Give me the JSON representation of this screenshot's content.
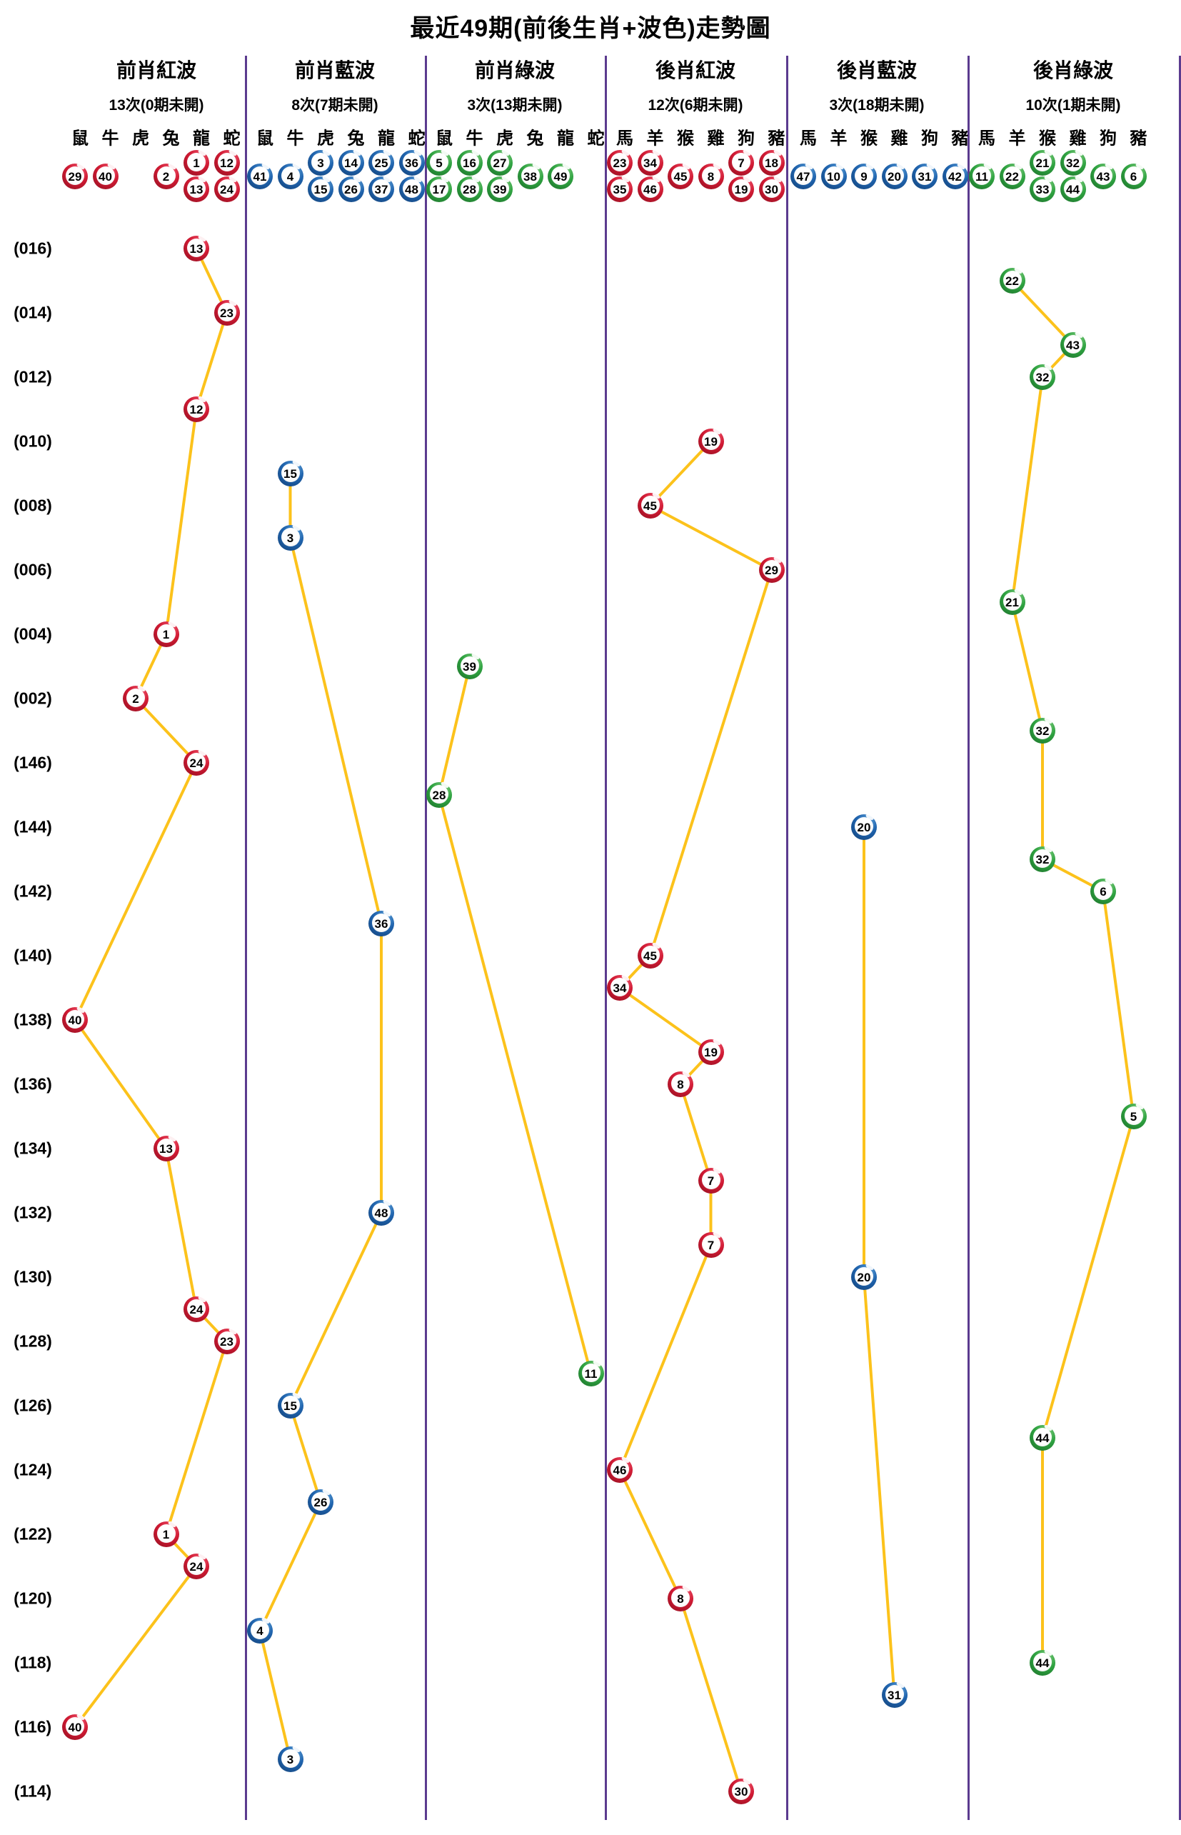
{
  "title": "最近49期(前後生肖+波色)走勢圖",
  "colors": {
    "polyline": "#fcc21b",
    "divider": "#5b3b8f",
    "red_ball": "#d01a33",
    "blue_ball": "#1f63ad",
    "green_ball": "#2fa341"
  },
  "chart_data": {
    "type": "line",
    "description": "49 lottery periods (rows, newest 016 at top wrapping 001->146 down to 114). Each row's drawn number is plotted as a ball in one of 6 wave-color sections, at the sub-column of its zodiac. Consecutive balls within a section are linked by yellow lines.",
    "row_labels": [
      {
        "row": 0,
        "label": "(016)"
      },
      {
        "row": 2,
        "label": "(014)"
      },
      {
        "row": 4,
        "label": "(012)"
      },
      {
        "row": 6,
        "label": "(010)"
      },
      {
        "row": 8,
        "label": "(008)"
      },
      {
        "row": 10,
        "label": "(006)"
      },
      {
        "row": 12,
        "label": "(004)"
      },
      {
        "row": 14,
        "label": "(002)"
      },
      {
        "row": 16,
        "label": "(146)"
      },
      {
        "row": 18,
        "label": "(144)"
      },
      {
        "row": 20,
        "label": "(142)"
      },
      {
        "row": 22,
        "label": "(140)"
      },
      {
        "row": 24,
        "label": "(138)"
      },
      {
        "row": 26,
        "label": "(136)"
      },
      {
        "row": 28,
        "label": "(134)"
      },
      {
        "row": 30,
        "label": "(132)"
      },
      {
        "row": 32,
        "label": "(130)"
      },
      {
        "row": 34,
        "label": "(128)"
      },
      {
        "row": 36,
        "label": "(126)"
      },
      {
        "row": 38,
        "label": "(124)"
      },
      {
        "row": 40,
        "label": "(122)"
      },
      {
        "row": 42,
        "label": "(120)"
      },
      {
        "row": 44,
        "label": "(118)"
      },
      {
        "row": 46,
        "label": "(116)"
      },
      {
        "row": 48,
        "label": "(114)"
      }
    ],
    "sections": [
      {
        "title": "前肖紅波",
        "count": "13次(0期未開)",
        "color": "red",
        "zodiacs": [
          "鼠",
          "牛",
          "虎",
          "兔",
          "龍",
          "蛇"
        ],
        "numbers_by_zodiac": [
          [
            29
          ],
          [
            40
          ],
          [],
          [
            2
          ],
          [
            1,
            13
          ],
          [
            12,
            24
          ]
        ]
      },
      {
        "title": "前肖藍波",
        "count": "8次(7期未開)",
        "color": "blue",
        "zodiacs": [
          "鼠",
          "牛",
          "虎",
          "兔",
          "龍",
          "蛇"
        ],
        "numbers_by_zodiac": [
          [
            41
          ],
          [
            4
          ],
          [
            3,
            15
          ],
          [
            14,
            26
          ],
          [
            25,
            37
          ],
          [
            36,
            48
          ]
        ]
      },
      {
        "title": "前肖綠波",
        "count": "3次(13期未開)",
        "color": "green",
        "zodiacs": [
          "鼠",
          "牛",
          "虎",
          "兔",
          "龍",
          "蛇"
        ],
        "numbers_by_zodiac": [
          [
            5,
            17
          ],
          [
            16,
            28
          ],
          [
            27,
            39
          ],
          [
            38
          ],
          [
            49
          ],
          []
        ]
      },
      {
        "title": "後肖紅波",
        "count": "12次(6期未開)",
        "color": "red",
        "zodiacs": [
          "馬",
          "羊",
          "猴",
          "雞",
          "狗",
          "豬"
        ],
        "numbers_by_zodiac": [
          [
            23,
            35
          ],
          [
            34,
            46
          ],
          [
            45
          ],
          [
            8
          ],
          [
            7,
            19
          ],
          [
            18,
            30
          ]
        ]
      },
      {
        "title": "後肖藍波",
        "count": "3次(18期未開)",
        "color": "blue",
        "zodiacs": [
          "馬",
          "羊",
          "猴",
          "雞",
          "狗",
          "豬"
        ],
        "numbers_by_zodiac": [
          [
            47
          ],
          [
            10
          ],
          [
            9
          ],
          [
            20
          ],
          [
            31
          ],
          [
            42
          ]
        ]
      },
      {
        "title": "後肖綠波",
        "count": "10次(1期未開)",
        "color": "green",
        "zodiacs": [
          "馬",
          "羊",
          "猴",
          "雞",
          "狗",
          "豬"
        ],
        "numbers_by_zodiac": [
          [
            11
          ],
          [
            22
          ],
          [
            21,
            33
          ],
          [
            32,
            44
          ],
          [
            43
          ],
          [
            6
          ]
        ]
      }
    ],
    "points": [
      {
        "row": 0,
        "section": 0,
        "slot": 4,
        "num": 13
      },
      {
        "row": 1,
        "section": 5,
        "slot": 1,
        "num": 22
      },
      {
        "row": 2,
        "section": 0,
        "slot": 5,
        "num": 23
      },
      {
        "row": 3,
        "section": 5,
        "slot": 3,
        "num": 43
      },
      {
        "row": 4,
        "section": 5,
        "slot": 2,
        "num": 32
      },
      {
        "row": 5,
        "section": 0,
        "slot": 4,
        "num": 12
      },
      {
        "row": 6,
        "section": 3,
        "slot": 3,
        "num": 19
      },
      {
        "row": 7,
        "section": 1,
        "slot": 1,
        "num": 15
      },
      {
        "row": 8,
        "section": 3,
        "slot": 1,
        "num": 45
      },
      {
        "row": 9,
        "section": 1,
        "slot": 1,
        "num": 3
      },
      {
        "row": 10,
        "section": 3,
        "slot": 5,
        "num": 29
      },
      {
        "row": 11,
        "section": 5,
        "slot": 1,
        "num": 21
      },
      {
        "row": 12,
        "section": 0,
        "slot": 3,
        "num": 1
      },
      {
        "row": 13,
        "section": 2,
        "slot": 1,
        "num": 39
      },
      {
        "row": 14,
        "section": 0,
        "slot": 2,
        "num": 2
      },
      {
        "row": 15,
        "section": 5,
        "slot": 2,
        "num": 32
      },
      {
        "row": 16,
        "section": 0,
        "slot": 4,
        "num": 24
      },
      {
        "row": 17,
        "section": 2,
        "slot": 0,
        "num": 28
      },
      {
        "row": 18,
        "section": 4,
        "slot": 2,
        "num": 20
      },
      {
        "row": 19,
        "section": 5,
        "slot": 2,
        "num": 32
      },
      {
        "row": 20,
        "section": 5,
        "slot": 4,
        "num": 6
      },
      {
        "row": 21,
        "section": 1,
        "slot": 4,
        "num": 36
      },
      {
        "row": 22,
        "section": 3,
        "slot": 1,
        "num": 45
      },
      {
        "row": 23,
        "section": 3,
        "slot": 0,
        "num": 34
      },
      {
        "row": 24,
        "section": 0,
        "slot": 0,
        "num": 40
      },
      {
        "row": 25,
        "section": 3,
        "slot": 3,
        "num": 19
      },
      {
        "row": 26,
        "section": 3,
        "slot": 2,
        "num": 8
      },
      {
        "row": 27,
        "section": 5,
        "slot": 5,
        "num": 5
      },
      {
        "row": 28,
        "section": 0,
        "slot": 3,
        "num": 13
      },
      {
        "row": 29,
        "section": 3,
        "slot": 3,
        "num": 7
      },
      {
        "row": 30,
        "section": 1,
        "slot": 4,
        "num": 48
      },
      {
        "row": 31,
        "section": 3,
        "slot": 3,
        "num": 7
      },
      {
        "row": 32,
        "section": 4,
        "slot": 2,
        "num": 20
      },
      {
        "row": 33,
        "section": 0,
        "slot": 4,
        "num": 24
      },
      {
        "row": 34,
        "section": 0,
        "slot": 5,
        "num": 23
      },
      {
        "row": 35,
        "section": 2,
        "slot": 5,
        "num": 11
      },
      {
        "row": 36,
        "section": 1,
        "slot": 1,
        "num": 15
      },
      {
        "row": 37,
        "section": 5,
        "slot": 2,
        "num": 44
      },
      {
        "row": 38,
        "section": 3,
        "slot": 0,
        "num": 46
      },
      {
        "row": 39,
        "section": 1,
        "slot": 2,
        "num": 26
      },
      {
        "row": 40,
        "section": 0,
        "slot": 3,
        "num": 1
      },
      {
        "row": 41,
        "section": 0,
        "slot": 4,
        "num": 24
      },
      {
        "row": 42,
        "section": 3,
        "slot": 2,
        "num": 8
      },
      {
        "row": 43,
        "section": 1,
        "slot": 0,
        "num": 4
      },
      {
        "row": 44,
        "section": 5,
        "slot": 2,
        "num": 44
      },
      {
        "row": 45,
        "section": 4,
        "slot": 3,
        "num": 31
      },
      {
        "row": 46,
        "section": 0,
        "slot": 0,
        "num": 40
      },
      {
        "row": 47,
        "section": 1,
        "slot": 1,
        "num": 3
      },
      {
        "row": 48,
        "section": 3,
        "slot": 4,
        "num": 30
      }
    ]
  }
}
